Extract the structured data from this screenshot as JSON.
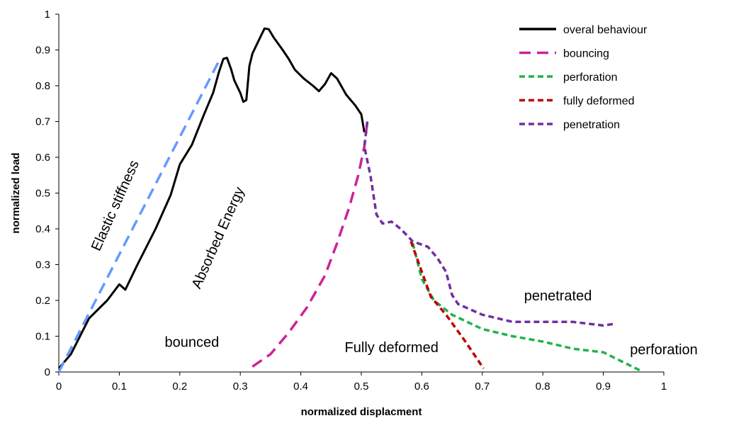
{
  "chart_data": {
    "type": "line",
    "xlabel": "normalized displacment",
    "ylabel": "normalized load",
    "xlim": [
      0,
      1
    ],
    "ylim": [
      0,
      1
    ],
    "xticks": [
      "0",
      "0.1",
      "0.2",
      "0.3",
      "0.4",
      "0.5",
      "0.6",
      "0.7",
      "0.8",
      "0.9",
      "1"
    ],
    "yticks": [
      "0",
      "0.1",
      "0.2",
      "0.3",
      "0.4",
      "0.5",
      "0.6",
      "0.7",
      "0.8",
      "0.9",
      "1"
    ],
    "grid": false,
    "legend_position": "top-right",
    "series": [
      {
        "name": "overal behaviour",
        "color": "#000000",
        "dash": "solid",
        "points": [
          [
            0.0,
            0.01
          ],
          [
            0.02,
            0.05
          ],
          [
            0.05,
            0.15
          ],
          [
            0.08,
            0.2
          ],
          [
            0.1,
            0.245
          ],
          [
            0.11,
            0.23
          ],
          [
            0.13,
            0.3
          ],
          [
            0.16,
            0.4
          ],
          [
            0.185,
            0.495
          ],
          [
            0.2,
            0.58
          ],
          [
            0.22,
            0.635
          ],
          [
            0.24,
            0.72
          ],
          [
            0.255,
            0.78
          ],
          [
            0.265,
            0.84
          ],
          [
            0.272,
            0.875
          ],
          [
            0.278,
            0.878
          ],
          [
            0.285,
            0.845
          ],
          [
            0.29,
            0.815
          ],
          [
            0.3,
            0.78
          ],
          [
            0.305,
            0.755
          ],
          [
            0.31,
            0.76
          ],
          [
            0.315,
            0.855
          ],
          [
            0.32,
            0.89
          ],
          [
            0.33,
            0.925
          ],
          [
            0.34,
            0.96
          ],
          [
            0.347,
            0.958
          ],
          [
            0.355,
            0.935
          ],
          [
            0.37,
            0.9
          ],
          [
            0.38,
            0.875
          ],
          [
            0.39,
            0.845
          ],
          [
            0.405,
            0.82
          ],
          [
            0.42,
            0.8
          ],
          [
            0.43,
            0.785
          ],
          [
            0.44,
            0.805
          ],
          [
            0.45,
            0.835
          ],
          [
            0.46,
            0.82
          ],
          [
            0.475,
            0.775
          ],
          [
            0.49,
            0.745
          ],
          [
            0.5,
            0.72
          ],
          [
            0.505,
            0.67
          ]
        ]
      },
      {
        "name": "bouncing",
        "color": "#cc2299",
        "dash": "long",
        "points": [
          [
            0.32,
            0.015
          ],
          [
            0.35,
            0.05
          ],
          [
            0.38,
            0.11
          ],
          [
            0.41,
            0.18
          ],
          [
            0.44,
            0.27
          ],
          [
            0.46,
            0.36
          ],
          [
            0.48,
            0.46
          ],
          [
            0.495,
            0.55
          ],
          [
            0.505,
            0.63
          ],
          [
            0.51,
            0.7
          ]
        ]
      },
      {
        "name": "perforation",
        "color": "#22b24c",
        "dash": "short",
        "points": [
          [
            0.585,
            0.36
          ],
          [
            0.6,
            0.26
          ],
          [
            0.62,
            0.2
          ],
          [
            0.65,
            0.16
          ],
          [
            0.7,
            0.12
          ],
          [
            0.75,
            0.1
          ],
          [
            0.8,
            0.085
          ],
          [
            0.85,
            0.065
          ],
          [
            0.9,
            0.055
          ],
          [
            0.93,
            0.03
          ],
          [
            0.96,
            0.005
          ]
        ]
      },
      {
        "name": "fully deformed",
        "color": "#c00000",
        "dash": "short",
        "points": [
          [
            0.582,
            0.365
          ],
          [
            0.6,
            0.28
          ],
          [
            0.615,
            0.21
          ],
          [
            0.64,
            0.16
          ],
          [
            0.67,
            0.09
          ],
          [
            0.69,
            0.04
          ],
          [
            0.702,
            0.01
          ]
        ]
      },
      {
        "name": "penetration",
        "color": "#7030a0",
        "dash": "short",
        "points": [
          [
            0.51,
            0.7
          ],
          [
            0.505,
            0.63
          ],
          [
            0.515,
            0.55
          ],
          [
            0.525,
            0.44
          ],
          [
            0.535,
            0.415
          ],
          [
            0.55,
            0.42
          ],
          [
            0.565,
            0.4
          ],
          [
            0.585,
            0.365
          ],
          [
            0.61,
            0.35
          ],
          [
            0.625,
            0.32
          ],
          [
            0.64,
            0.28
          ],
          [
            0.65,
            0.215
          ],
          [
            0.66,
            0.19
          ],
          [
            0.7,
            0.16
          ],
          [
            0.75,
            0.14
          ],
          [
            0.8,
            0.14
          ],
          [
            0.85,
            0.14
          ],
          [
            0.9,
            0.13
          ],
          [
            0.92,
            0.135
          ]
        ]
      },
      {
        "name": "Elastic stiffness",
        "color": "#6699ff",
        "dash": "long",
        "points": [
          [
            0.0,
            0.0
          ],
          [
            0.265,
            0.87
          ]
        ]
      }
    ],
    "legend": [
      {
        "label": "overal behaviour",
        "color": "#000000",
        "dash": "solid"
      },
      {
        "label": "bouncing",
        "color": "#cc2299",
        "dash": "long"
      },
      {
        "label": "perforation",
        "color": "#22b24c",
        "dash": "short"
      },
      {
        "label": "fully deformed",
        "color": "#c00000",
        "dash": "short"
      },
      {
        "label": "penetration",
        "color": "#7030a0",
        "dash": "short"
      }
    ],
    "annotations": [
      {
        "text": "Elastic stiffness",
        "x": 0.1,
        "y": 0.46,
        "rotate": -66
      },
      {
        "text": "Absorbed Energy",
        "x": 0.27,
        "y": 0.37,
        "rotate": -66
      },
      {
        "text": "bounced",
        "x": 0.22,
        "y": 0.07,
        "rotate": 0
      },
      {
        "text": "Fully deformed",
        "x": 0.55,
        "y": 0.055,
        "rotate": 0
      },
      {
        "text": "penetrated",
        "x": 0.825,
        "y": 0.2,
        "rotate": 0
      },
      {
        "text": "perforation",
        "x": 1.0,
        "y": 0.05,
        "rotate": 0
      }
    ]
  }
}
